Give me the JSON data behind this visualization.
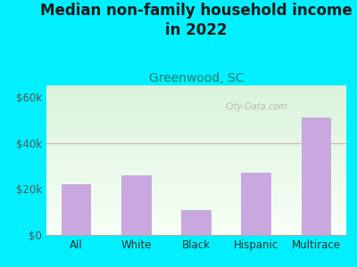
{
  "title": "Median non-family household income\nin 2022",
  "subtitle": "Greenwood, SC",
  "categories": [
    "All",
    "White",
    "Black",
    "Hispanic",
    "Multirace"
  ],
  "values": [
    22000,
    26000,
    11000,
    27000,
    51000
  ],
  "bar_color": "#c9a8e0",
  "background_outer": "#00f0ff",
  "background_inner_top_left": "#d8f0d8",
  "background_inner_bottom_right": "#f8fff8",
  "title_color": "#1a1a1a",
  "subtitle_color": "#2a7a6a",
  "ylabel_color": "#555555",
  "xlabel_color": "#333333",
  "yticks": [
    0,
    20000,
    40000,
    60000
  ],
  "ytick_labels": [
    "$0",
    "$20k",
    "$40k",
    "$60k"
  ],
  "ylim": [
    0,
    65000
  ],
  "watermark": "City-Data.com",
  "grid_color": "#d8a8a8",
  "title_fontsize": 12,
  "subtitle_fontsize": 10,
  "tick_fontsize": 8.5
}
